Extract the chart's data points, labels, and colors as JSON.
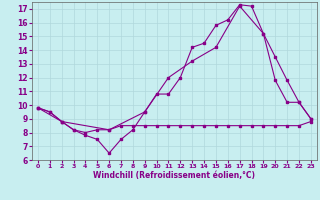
{
  "xlabel": "Windchill (Refroidissement éolien,°C)",
  "background_color": "#c8eef0",
  "grid_color": "#b0d8dc",
  "line_color": "#880088",
  "xlim": [
    -0.5,
    23.5
  ],
  "ylim": [
    6.0,
    17.5
  ],
  "yticks": [
    6,
    7,
    8,
    9,
    10,
    11,
    12,
    13,
    14,
    15,
    16,
    17
  ],
  "xticks": [
    0,
    1,
    2,
    3,
    4,
    5,
    6,
    7,
    8,
    9,
    10,
    11,
    12,
    13,
    14,
    15,
    16,
    17,
    18,
    19,
    20,
    21,
    22,
    23
  ],
  "series1_x": [
    0,
    1,
    2,
    3,
    4,
    5,
    6,
    7,
    8,
    9,
    10,
    11,
    12,
    13,
    14,
    15,
    16,
    17,
    18,
    19,
    20,
    21,
    22,
    23
  ],
  "series1_y": [
    9.8,
    9.5,
    8.8,
    8.2,
    7.8,
    7.5,
    6.5,
    7.5,
    8.2,
    9.5,
    10.8,
    10.8,
    12.0,
    14.2,
    14.5,
    15.8,
    16.2,
    17.3,
    17.2,
    15.2,
    11.8,
    10.2,
    10.2,
    9.0
  ],
  "series2_x": [
    0,
    1,
    2,
    3,
    4,
    5,
    6,
    7,
    8,
    9,
    10,
    11,
    12,
    13,
    14,
    15,
    16,
    17,
    18,
    19,
    20,
    21,
    22,
    23
  ],
  "series2_y": [
    9.8,
    9.5,
    8.8,
    8.2,
    8.0,
    8.2,
    8.2,
    8.5,
    8.5,
    8.5,
    8.5,
    8.5,
    8.5,
    8.5,
    8.5,
    8.5,
    8.5,
    8.5,
    8.5,
    8.5,
    8.5,
    8.5,
    8.5,
    8.8
  ],
  "series3_x": [
    0,
    2,
    6,
    9,
    11,
    13,
    15,
    17,
    19,
    20,
    21,
    22,
    23
  ],
  "series3_y": [
    9.8,
    8.8,
    8.2,
    9.5,
    12.0,
    13.2,
    14.2,
    17.2,
    15.2,
    13.5,
    11.8,
    10.2,
    9.0
  ]
}
